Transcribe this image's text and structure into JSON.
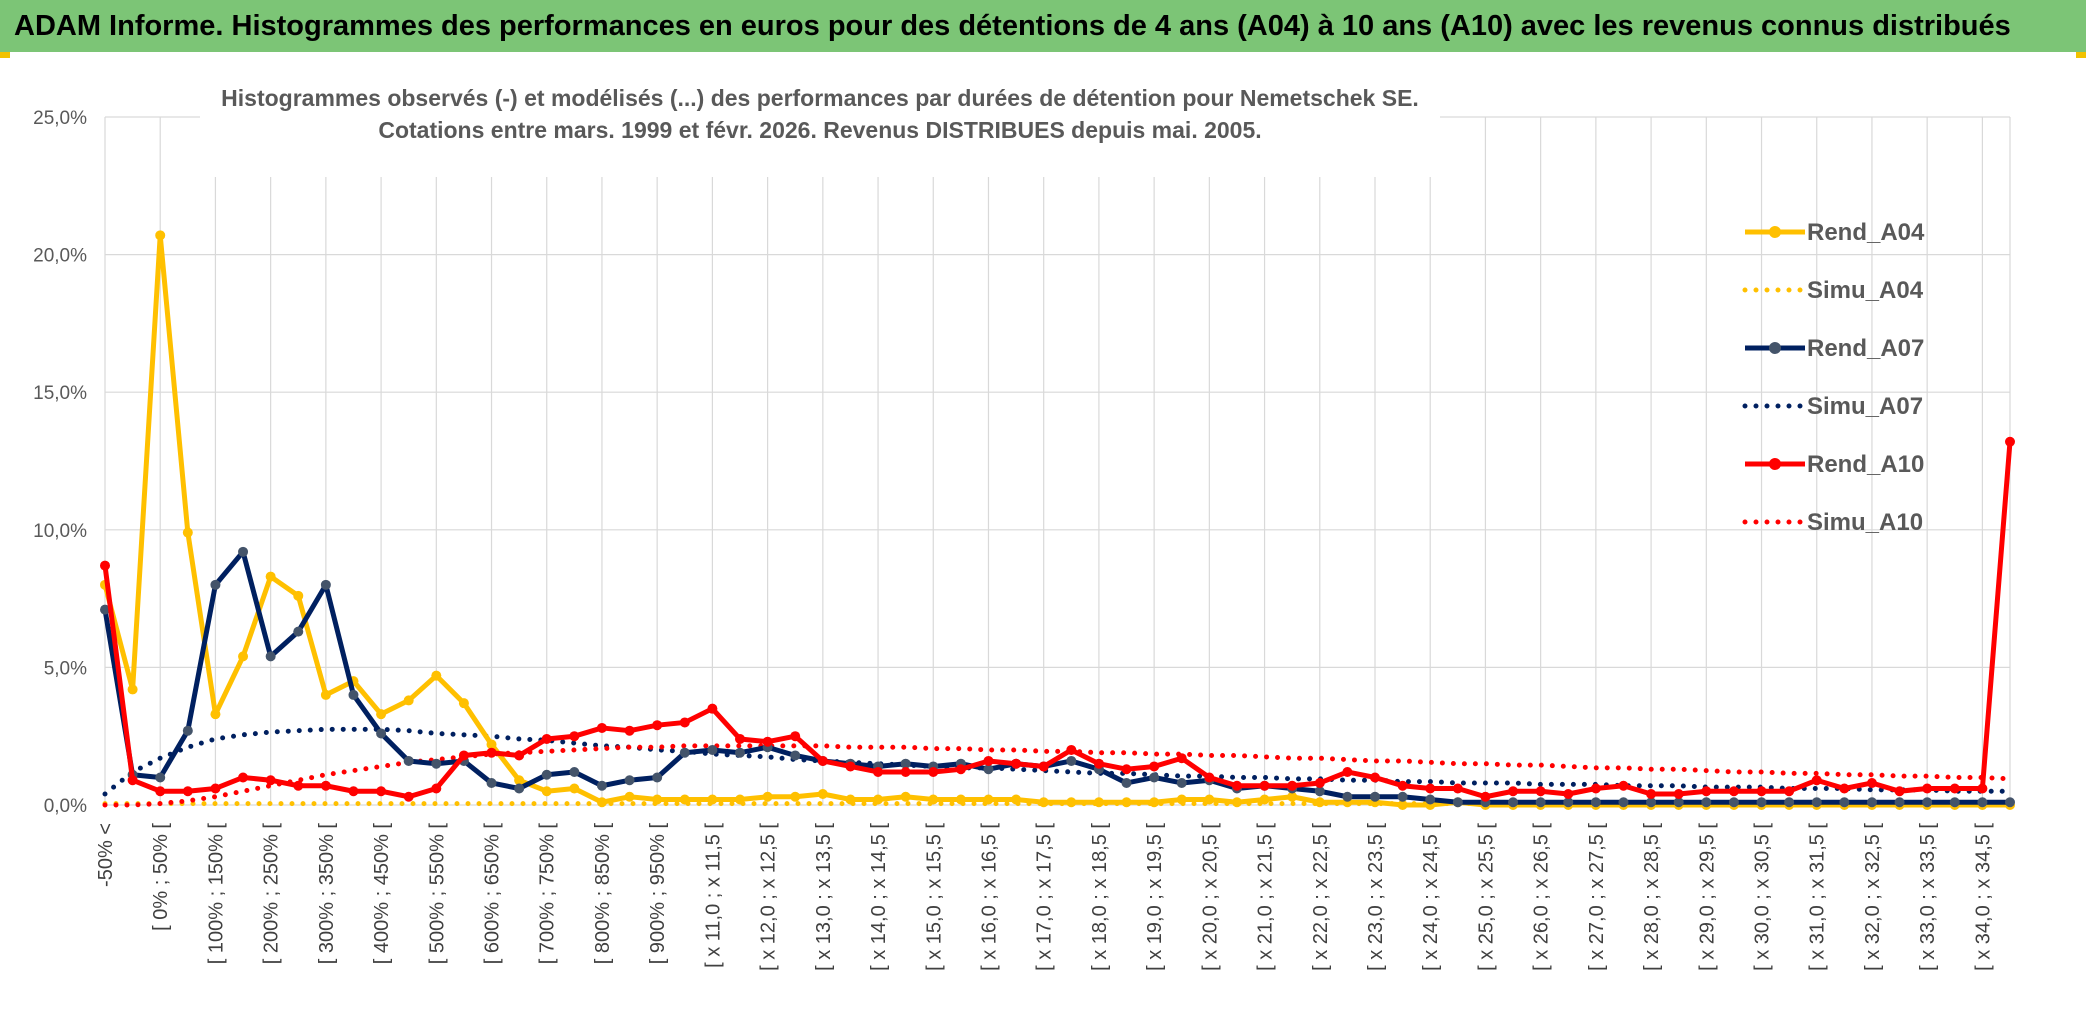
{
  "banner": {
    "title": "ADAM Informe. Histogrammes des performances en euros pour des détentions de 4 ans (A04) à 10 ans (A10) avec les revenus connus distribués"
  },
  "colors": {
    "banner_bg": "#7cc576",
    "A04": "#ffc000",
    "A07": "#002060",
    "A10": "#ff0000",
    "grid": "#d9d9d9"
  },
  "chart_data": {
    "type": "line",
    "title": "Histogrammes observés (-) et modélisés (...) des performances par durées de détention pour Nemetschek SE.",
    "subtitle": "Cotations entre mars. 1999 et févr. 2026. Revenus DISTRIBUES depuis mai. 2005.",
    "xlabel": "",
    "ylabel": "",
    "ylim": [
      0,
      25
    ],
    "y_ticks": [
      "0,0%",
      "5,0%",
      "10,0%",
      "15,0%",
      "20,0%",
      "25,0%"
    ],
    "y_tick_values": [
      0,
      5,
      10,
      15,
      20,
      25
    ],
    "legend_position": "right",
    "categories": [
      "-50% <",
      "",
      "[ 0% ; 50% [",
      "",
      "[ 100% ; 150% [",
      "",
      "[ 200% ; 250% [",
      "",
      "[ 300% ; 350% [",
      "",
      "[ 400% ; 450% [",
      "",
      "[ 500% ; 550% [",
      "",
      "[ 600% ; 650% [",
      "",
      "[ 700% ; 750% [",
      "",
      "[ 800% ; 850% [",
      "",
      "[ 900% ; 950% [",
      "",
      "[ x 11,0 ; x 11,5 [",
      "",
      "[ x 12,0 ; x 12,5 [",
      "",
      "[ x 13,0 ; x 13,5 [",
      "",
      "[ x 14,0 ; x 14,5 [",
      "",
      "[ x 15,0 ; x 15,5 [",
      "",
      "[ x 16,0 ; x 16,5 [",
      "",
      "[ x 17,0 ; x 17,5 [",
      "",
      "[ x 18,0 ; x 18,5 [",
      "",
      "[ x 19,0 ; x 19,5 [",
      "",
      "[ x 20,0 ; x 20,5 [",
      "",
      "[ x 21,0 ; x 21,5 [",
      "",
      "[ x 22,0 ; x 22,5 [",
      "",
      "[ x 23,0 ; x 23,5 [",
      "",
      "[ x 24,0 ; x 24,5 [",
      "",
      "[ x 25,0 ; x 25,5 [",
      "",
      "[ x 26,0 ; x 26,5 [",
      "",
      "[ x 27,0 ; x 27,5 [",
      "",
      "[ x 28,0 ; x 28,5 [",
      "",
      "[ x 29,0 ; x 29,5 [",
      "",
      "[ x 30,0 ; x 30,5 [",
      "",
      "[ x 31,0 ; x 31,5 [",
      "",
      "[ x 32,0 ; x 32,5 [",
      "",
      "[ x 33,0 ; x 33,5 [",
      "",
      "[ x 34,0 ; x 34,5 [",
      ""
    ],
    "series": [
      {
        "name": "Rend_A04",
        "style": "solid",
        "color": "#ffc000",
        "values": [
          8.0,
          4.2,
          20.7,
          9.9,
          3.3,
          5.4,
          8.3,
          7.6,
          4.0,
          4.5,
          3.3,
          3.8,
          4.7,
          3.7,
          2.2,
          0.9,
          0.5,
          0.6,
          0.1,
          0.3,
          0.2,
          0.2,
          0.2,
          0.2,
          0.3,
          0.3,
          0.4,
          0.2,
          0.2,
          0.3,
          0.2,
          0.2,
          0.2,
          0.2,
          0.1,
          0.1,
          0.1,
          0.1,
          0.1,
          0.2,
          0.2,
          0.1,
          0.2,
          0.3,
          0.1,
          0.1,
          0.1,
          0.0,
          0.0,
          0.1,
          0.0,
          0.0,
          0.0,
          0.0,
          0.0,
          0.0,
          0.0,
          0.0,
          0.0,
          0.0,
          0.0,
          0.0,
          0.0,
          0.0,
          0.0,
          0.0,
          0.0,
          0.0,
          0.0,
          0.0
        ]
      },
      {
        "name": "Simu_A04",
        "style": "dotted",
        "color": "#ffc000",
        "values": [
          0.05,
          0.05,
          0.05,
          0.05,
          0.05,
          0.05,
          0.05,
          0.05,
          0.05,
          0.05,
          0.05,
          0.05,
          0.05,
          0.05,
          0.05,
          0.05,
          0.05,
          0.05,
          0.05,
          0.05,
          0.05,
          0.05,
          0.05,
          0.05,
          0.05,
          0.05,
          0.05,
          0.05,
          0.05,
          0.05,
          0.05,
          0.05,
          0.05,
          0.05,
          0.05,
          0.05,
          0.05,
          0.05,
          0.05,
          0.05,
          0.05,
          0.05,
          0.05,
          0.05,
          0.05,
          0.05,
          0.05,
          0.05,
          0.05,
          0.05,
          0.05,
          0.05,
          0.05,
          0.05,
          0.05,
          0.05,
          0.05,
          0.05,
          0.05,
          0.05,
          0.05,
          0.05,
          0.05,
          0.05,
          0.05,
          0.05,
          0.05,
          0.05,
          0.05,
          0.05
        ]
      },
      {
        "name": "Rend_A07",
        "style": "solid",
        "color": "#002060",
        "values": [
          7.1,
          1.1,
          1.0,
          2.7,
          8.0,
          9.2,
          5.4,
          6.3,
          8.0,
          4.0,
          2.6,
          1.6,
          1.5,
          1.6,
          0.8,
          0.6,
          1.1,
          1.2,
          0.7,
          0.9,
          1.0,
          1.9,
          2.0,
          1.9,
          2.1,
          1.8,
          1.6,
          1.5,
          1.4,
          1.5,
          1.4,
          1.5,
          1.3,
          1.5,
          1.4,
          1.6,
          1.3,
          0.8,
          1.0,
          0.8,
          0.9,
          0.6,
          0.7,
          0.6,
          0.5,
          0.3,
          0.3,
          0.3,
          0.2,
          0.1,
          0.1,
          0.1,
          0.1,
          0.1,
          0.1,
          0.1,
          0.1,
          0.1,
          0.1,
          0.1,
          0.1,
          0.1,
          0.1,
          0.1,
          0.1,
          0.1,
          0.1,
          0.1,
          0.1,
          0.1
        ]
      },
      {
        "name": "Simu_A07",
        "style": "dotted",
        "color": "#002060",
        "values": [
          0.4,
          1.2,
          1.7,
          2.1,
          2.4,
          2.55,
          2.65,
          2.7,
          2.75,
          2.75,
          2.75,
          2.7,
          2.6,
          2.55,
          2.5,
          2.4,
          2.35,
          2.25,
          2.15,
          2.1,
          2.0,
          1.95,
          1.85,
          1.8,
          1.75,
          1.65,
          1.6,
          1.55,
          1.5,
          1.45,
          1.4,
          1.35,
          1.35,
          1.3,
          1.25,
          1.2,
          1.15,
          1.15,
          1.1,
          1.05,
          1.05,
          1.0,
          1.0,
          0.95,
          0.95,
          0.9,
          0.9,
          0.85,
          0.85,
          0.8,
          0.8,
          0.8,
          0.75,
          0.75,
          0.75,
          0.7,
          0.7,
          0.7,
          0.65,
          0.65,
          0.65,
          0.6,
          0.6,
          0.6,
          0.55,
          0.55,
          0.55,
          0.5,
          0.5,
          0.5
        ]
      },
      {
        "name": "Rend_A10",
        "style": "solid",
        "color": "#ff0000",
        "values": [
          8.7,
          0.9,
          0.5,
          0.5,
          0.6,
          1.0,
          0.9,
          0.7,
          0.7,
          0.5,
          0.5,
          0.3,
          0.6,
          1.8,
          1.9,
          1.8,
          2.4,
          2.5,
          2.8,
          2.7,
          2.9,
          3.0,
          3.5,
          2.4,
          2.3,
          2.5,
          1.6,
          1.4,
          1.2,
          1.2,
          1.2,
          1.3,
          1.6,
          1.5,
          1.4,
          2.0,
          1.5,
          1.3,
          1.4,
          1.7,
          1.0,
          0.7,
          0.7,
          0.7,
          0.8,
          1.2,
          1.0,
          0.7,
          0.6,
          0.6,
          0.3,
          0.5,
          0.5,
          0.4,
          0.6,
          0.7,
          0.4,
          0.4,
          0.5,
          0.5,
          0.5,
          0.5,
          0.9,
          0.6,
          0.8,
          0.5,
          0.6,
          0.6,
          0.6,
          13.2
        ]
      },
      {
        "name": "Simu_A10",
        "style": "dotted",
        "color": "#ff0000",
        "values": [
          0.0,
          0.0,
          0.05,
          0.15,
          0.3,
          0.5,
          0.7,
          0.9,
          1.1,
          1.25,
          1.4,
          1.55,
          1.65,
          1.75,
          1.85,
          1.9,
          1.95,
          2.0,
          2.05,
          2.1,
          2.1,
          2.15,
          2.15,
          2.15,
          2.15,
          2.15,
          2.15,
          2.1,
          2.1,
          2.1,
          2.05,
          2.05,
          2.0,
          2.0,
          1.95,
          1.95,
          1.9,
          1.9,
          1.85,
          1.85,
          1.8,
          1.8,
          1.75,
          1.7,
          1.7,
          1.65,
          1.6,
          1.6,
          1.55,
          1.5,
          1.5,
          1.45,
          1.45,
          1.4,
          1.35,
          1.35,
          1.3,
          1.3,
          1.25,
          1.2,
          1.2,
          1.15,
          1.15,
          1.1,
          1.1,
          1.05,
          1.05,
          1.0,
          1.0,
          0.95
        ]
      }
    ]
  }
}
